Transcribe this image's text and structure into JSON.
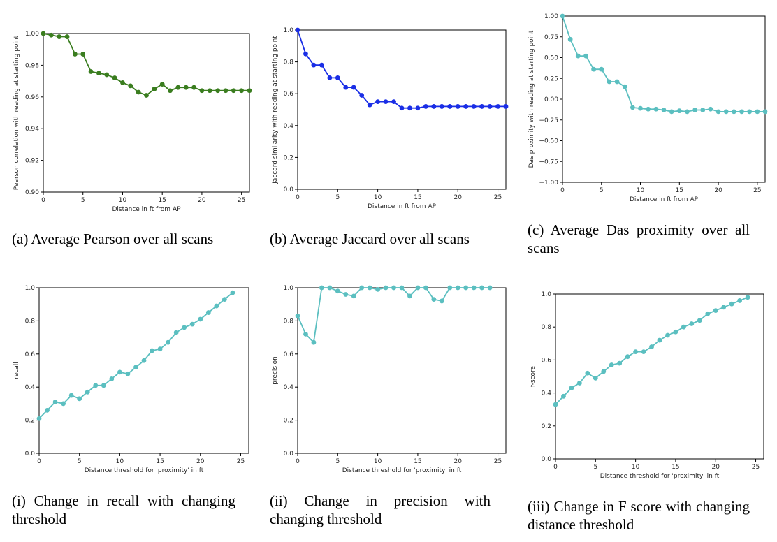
{
  "chart_data": [
    {
      "type": "line",
      "color": "#3a7d1f",
      "xlabel": "Distance in ft from AP",
      "ylabel": "Pearson correlation with reading at starting point",
      "xlim": [
        0,
        26
      ],
      "ylim": [
        0.9,
        1.0
      ],
      "xticks": [
        0,
        5,
        10,
        15,
        20,
        25
      ],
      "yticks": [
        0.9,
        0.92,
        0.94,
        0.96,
        0.98,
        1.0
      ],
      "ytick_labels": [
        "0.90",
        "0.92",
        "0.94",
        "0.96",
        "0.98",
        "1.00"
      ],
      "x": [
        0,
        1,
        2,
        3,
        4,
        5,
        6,
        7,
        8,
        9,
        10,
        11,
        12,
        13,
        14,
        15,
        16,
        17,
        18,
        19,
        20,
        21,
        22,
        23,
        24,
        25,
        26
      ],
      "values": [
        1.0,
        0.999,
        0.998,
        0.998,
        0.987,
        0.987,
        0.976,
        0.975,
        0.974,
        0.972,
        0.969,
        0.967,
        0.963,
        0.961,
        0.965,
        0.968,
        0.964,
        0.966,
        0.966,
        0.966,
        0.964,
        0.964,
        0.964,
        0.964,
        0.964,
        0.964,
        0.964
      ],
      "caption": "(a) Average Pearson over all scans"
    },
    {
      "type": "line",
      "color": "#1a2ee6",
      "xlabel": "Distance in ft from AP",
      "ylabel": "Jaccard similarity with reading at starting point",
      "xlim": [
        0,
        26
      ],
      "ylim": [
        0.0,
        1.0
      ],
      "xticks": [
        0,
        5,
        10,
        15,
        20,
        25
      ],
      "yticks": [
        0.0,
        0.2,
        0.4,
        0.6,
        0.8,
        1.0
      ],
      "ytick_labels": [
        "0.0",
        "0.2",
        "0.4",
        "0.6",
        "0.8",
        "1.0"
      ],
      "x": [
        0,
        1,
        2,
        3,
        4,
        5,
        6,
        7,
        8,
        9,
        10,
        11,
        12,
        13,
        14,
        15,
        16,
        17,
        18,
        19,
        20,
        21,
        22,
        23,
        24,
        25,
        26
      ],
      "values": [
        1.0,
        0.85,
        0.78,
        0.78,
        0.7,
        0.7,
        0.64,
        0.64,
        0.59,
        0.53,
        0.55,
        0.55,
        0.55,
        0.51,
        0.51,
        0.51,
        0.52,
        0.52,
        0.52,
        0.52,
        0.52,
        0.52,
        0.52,
        0.52,
        0.52,
        0.52,
        0.52
      ],
      "caption": "(b) Average Jaccard over all scans"
    },
    {
      "type": "line",
      "color": "#5bbfc0",
      "xlabel": "Distance in ft from AP",
      "ylabel": "Das proximity with reading at starting point",
      "xlim": [
        0,
        26
      ],
      "ylim": [
        -1.0,
        1.0
      ],
      "xticks": [
        0,
        5,
        10,
        15,
        20,
        25
      ],
      "yticks": [
        -1.0,
        -0.75,
        -0.5,
        -0.25,
        0.0,
        0.25,
        0.5,
        0.75,
        1.0
      ],
      "ytick_labels": [
        "−1.00",
        "−0.75",
        "−0.50",
        "−0.25",
        "0.00",
        "0.25",
        "0.50",
        "0.75",
        "1.00"
      ],
      "x": [
        0,
        1,
        2,
        3,
        4,
        5,
        6,
        7,
        8,
        9,
        10,
        11,
        12,
        13,
        14,
        15,
        16,
        17,
        18,
        19,
        20,
        21,
        22,
        23,
        24,
        25,
        26
      ],
      "values": [
        1.0,
        0.72,
        0.52,
        0.52,
        0.36,
        0.36,
        0.21,
        0.21,
        0.15,
        -0.1,
        -0.11,
        -0.12,
        -0.12,
        -0.13,
        -0.15,
        -0.14,
        -0.15,
        -0.13,
        -0.13,
        -0.12,
        -0.15,
        -0.15,
        -0.15,
        -0.15,
        -0.15,
        -0.15,
        -0.15
      ],
      "caption": "(c) Average Das proximity over all scans"
    },
    {
      "type": "line",
      "color": "#5bbfc0",
      "xlabel": "Distance threshold for 'proximity' in ft",
      "ylabel": "recall",
      "xlim": [
        0,
        26
      ],
      "ylim": [
        0.0,
        1.0
      ],
      "xticks": [
        0,
        5,
        10,
        15,
        20,
        25
      ],
      "yticks": [
        0.0,
        0.2,
        0.4,
        0.6,
        0.8,
        1.0
      ],
      "ytick_labels": [
        "0.0",
        "0.2",
        "0.4",
        "0.6",
        "0.8",
        "1.0"
      ],
      "x": [
        0,
        1,
        2,
        3,
        4,
        5,
        6,
        7,
        8,
        9,
        10,
        11,
        12,
        13,
        14,
        15,
        16,
        17,
        18,
        19,
        20,
        21,
        22,
        23,
        24
      ],
      "values": [
        0.21,
        0.26,
        0.31,
        0.3,
        0.35,
        0.33,
        0.37,
        0.41,
        0.41,
        0.45,
        0.49,
        0.48,
        0.52,
        0.56,
        0.62,
        0.63,
        0.67,
        0.73,
        0.76,
        0.78,
        0.81,
        0.85,
        0.89,
        0.93,
        0.97
      ],
      "caption": "(i) Change in recall with changing threshold"
    },
    {
      "type": "line",
      "color": "#5bbfc0",
      "xlabel": "Distance threshold for 'proximity' in ft",
      "ylabel": "precision",
      "xlim": [
        0,
        26
      ],
      "ylim": [
        0.0,
        1.0
      ],
      "xticks": [
        0,
        5,
        10,
        15,
        20,
        25
      ],
      "yticks": [
        0.0,
        0.2,
        0.4,
        0.6,
        0.8,
        1.0
      ],
      "ytick_labels": [
        "0.0",
        "0.2",
        "0.4",
        "0.6",
        "0.8",
        "1.0"
      ],
      "x": [
        0,
        1,
        2,
        3,
        4,
        5,
        6,
        7,
        8,
        9,
        10,
        11,
        12,
        13,
        14,
        15,
        16,
        17,
        18,
        19,
        20,
        21,
        22,
        23,
        24
      ],
      "values": [
        0.83,
        0.72,
        0.67,
        1.0,
        1.0,
        0.98,
        0.96,
        0.95,
        1.0,
        1.0,
        0.99,
        1.0,
        1.0,
        1.0,
        0.95,
        1.0,
        1.0,
        0.93,
        0.92,
        1.0,
        1.0,
        1.0,
        1.0,
        1.0,
        1.0
      ],
      "caption": "(ii) Change in precision with changing threshold"
    },
    {
      "type": "line",
      "color": "#5bbfc0",
      "xlabel": "Distance threshold for 'proximity' in ft",
      "ylabel": "f-score",
      "xlim": [
        0,
        26
      ],
      "ylim": [
        0.0,
        1.0
      ],
      "xticks": [
        0,
        5,
        10,
        15,
        20,
        25
      ],
      "yticks": [
        0.0,
        0.2,
        0.4,
        0.6,
        0.8,
        1.0
      ],
      "ytick_labels": [
        "0.0",
        "0.2",
        "0.4",
        "0.6",
        "0.8",
        "1.0"
      ],
      "x": [
        0,
        1,
        2,
        3,
        4,
        5,
        6,
        7,
        8,
        9,
        10,
        11,
        12,
        13,
        14,
        15,
        16,
        17,
        18,
        19,
        20,
        21,
        22,
        23,
        24
      ],
      "values": [
        0.33,
        0.38,
        0.43,
        0.46,
        0.52,
        0.49,
        0.53,
        0.57,
        0.58,
        0.62,
        0.65,
        0.65,
        0.68,
        0.72,
        0.75,
        0.77,
        0.8,
        0.82,
        0.84,
        0.88,
        0.9,
        0.92,
        0.94,
        0.96,
        0.98
      ],
      "caption": "(iii) Change in F score with changing distance threshold"
    }
  ]
}
